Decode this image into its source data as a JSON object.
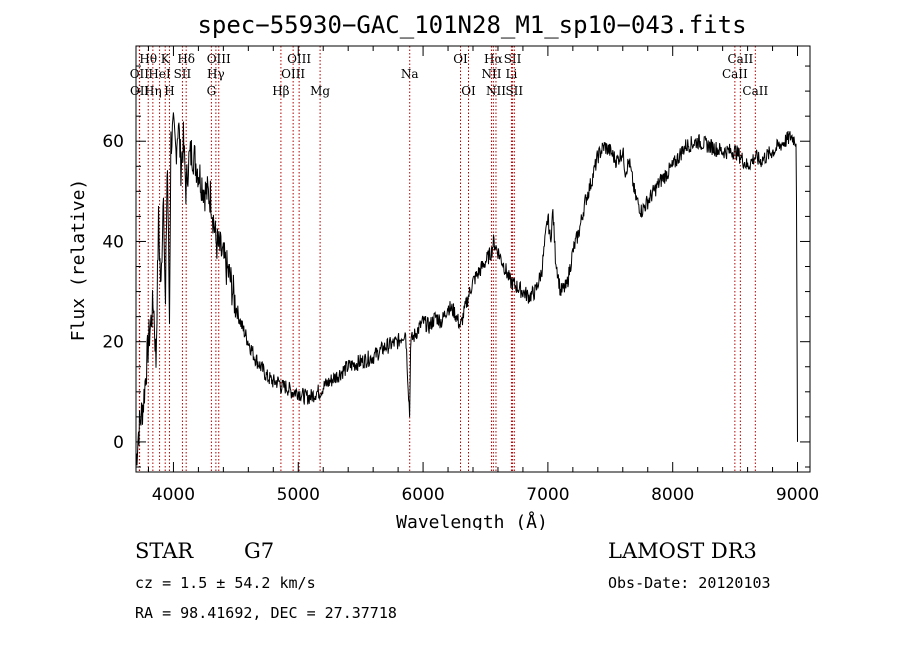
{
  "chart_data": {
    "type": "line",
    "title": "spec−55930−GAC_101N28_M1_sp10−043.fits",
    "xlabel": "Wavelength (Å)",
    "ylabel": "Flux (relative)",
    "xlim": [
      3700,
      9100
    ],
    "ylim": [
      -6,
      79
    ],
    "xticks": [
      4000,
      5000,
      6000,
      7000,
      8000,
      9000
    ],
    "yticks": [
      0,
      20,
      40,
      60
    ],
    "series": [
      {
        "name": "flux",
        "x": [
          3700,
          3720,
          3740,
          3760,
          3780,
          3800,
          3820,
          3840,
          3860,
          3880,
          3900,
          3920,
          3935,
          3950,
          3968,
          3980,
          4000,
          4020,
          4040,
          4060,
          4080,
          4101,
          4120,
          4150,
          4200,
          4250,
          4300,
          4340,
          4380,
          4420,
          4450,
          4500,
          4550,
          4600,
          4650,
          4700,
          4750,
          4800,
          4850,
          4861,
          4900,
          4950,
          5000,
          5050,
          5100,
          5150,
          5175,
          5200,
          5300,
          5400,
          5500,
          5600,
          5700,
          5800,
          5860,
          5893,
          5900,
          5950,
          6000,
          6050,
          6100,
          6150,
          6200,
          6250,
          6300,
          6350,
          6400,
          6450,
          6500,
          6550,
          6563,
          6600,
          6650,
          6700,
          6750,
          6800,
          6850,
          6900,
          6950,
          7000,
          7020,
          7040,
          7060,
          7100,
          7150,
          7200,
          7250,
          7300,
          7350,
          7400,
          7450,
          7500,
          7550,
          7600,
          7620,
          7650,
          7700,
          7750,
          7800,
          7900,
          8000,
          8100,
          8200,
          8300,
          8400,
          8500,
          8540,
          8600,
          8662,
          8700,
          8800,
          8900,
          8950,
          8990,
          9000
        ],
        "y": [
          -4,
          2,
          5,
          8,
          14,
          20,
          24,
          28,
          16,
          44,
          30,
          52,
          24,
          58,
          24,
          60,
          62,
          58,
          64,
          55,
          60,
          50,
          56,
          58,
          54,
          50,
          49,
          40,
          38,
          35,
          33,
          27,
          23,
          20,
          17,
          15,
          13,
          12,
          12,
          11,
          11,
          10,
          10,
          9,
          9,
          10,
          10,
          11,
          13,
          15,
          16,
          17,
          19,
          20,
          22,
          5,
          20,
          22,
          24,
          23,
          25,
          24,
          27,
          26,
          23,
          28,
          32,
          34,
          36,
          38,
          40,
          38,
          35,
          32,
          31,
          30,
          29,
          30,
          34,
          45,
          40,
          46,
          37,
          30,
          31,
          38,
          42,
          48,
          52,
          57,
          59,
          58,
          56,
          58,
          54,
          56,
          49,
          46,
          48,
          52,
          55,
          59,
          60,
          59,
          58,
          58,
          57,
          55,
          57,
          56,
          58,
          60,
          61,
          60,
          0
        ]
      }
    ],
    "spectral_lines": [
      {
        "name": "Hθ",
        "wavelength": 3798,
        "row": 1
      },
      {
        "name": "OII",
        "wavelength": 3727,
        "row": 2
      },
      {
        "name": "OII",
        "wavelength": 3729,
        "row": 3
      },
      {
        "name": "Hη",
        "wavelength": 3835,
        "row": 3
      },
      {
        "name": "HeI",
        "wavelength": 3889,
        "row": 2
      },
      {
        "name": "K",
        "wavelength": 3934,
        "row": 1
      },
      {
        "name": "H",
        "wavelength": 3968,
        "row": 3
      },
      {
        "name": "SII",
        "wavelength": 4072,
        "row": 2
      },
      {
        "name": "Hδ",
        "wavelength": 4102,
        "row": 1
      },
      {
        "name": "OIII",
        "wavelength": 4363,
        "row": 1
      },
      {
        "name": "Hγ",
        "wavelength": 4340,
        "row": 2
      },
      {
        "name": "G",
        "wavelength": 4304,
        "row": 3
      },
      {
        "name": "Hβ",
        "wavelength": 4861,
        "row": 3
      },
      {
        "name": "OIII",
        "wavelength": 5007,
        "row": 1
      },
      {
        "name": "OIII",
        "wavelength": 4959,
        "row": 2
      },
      {
        "name": "Mg",
        "wavelength": 5175,
        "row": 3
      },
      {
        "name": "Na",
        "wavelength": 5893,
        "row": 2
      },
      {
        "name": "OI",
        "wavelength": 6300,
        "row": 1
      },
      {
        "name": "OI",
        "wavelength": 6364,
        "row": 3
      },
      {
        "name": "Hα",
        "wavelength": 6563,
        "row": 1
      },
      {
        "name": "NII",
        "wavelength": 6548,
        "row": 2
      },
      {
        "name": "NII",
        "wavelength": 6584,
        "row": 3
      },
      {
        "name": "SII",
        "wavelength": 6717,
        "row": 1
      },
      {
        "name": "Li",
        "wavelength": 6708,
        "row": 2
      },
      {
        "name": "SII",
        "wavelength": 6731,
        "row": 3
      },
      {
        "name": "CaII",
        "wavelength": 8542,
        "row": 1
      },
      {
        "name": "CaII",
        "wavelength": 8498,
        "row": 2
      },
      {
        "name": "CaII",
        "wavelength": 8662,
        "row": 3
      }
    ]
  },
  "info": {
    "class_label": "STAR",
    "subclass": "G7",
    "survey": "LAMOST DR3",
    "cz": "cz = 1.5 ± 54.2 km/s",
    "obs_date": "Obs-Date: 20120103",
    "coords": "RA =  98.41692, DEC =  27.37718"
  }
}
